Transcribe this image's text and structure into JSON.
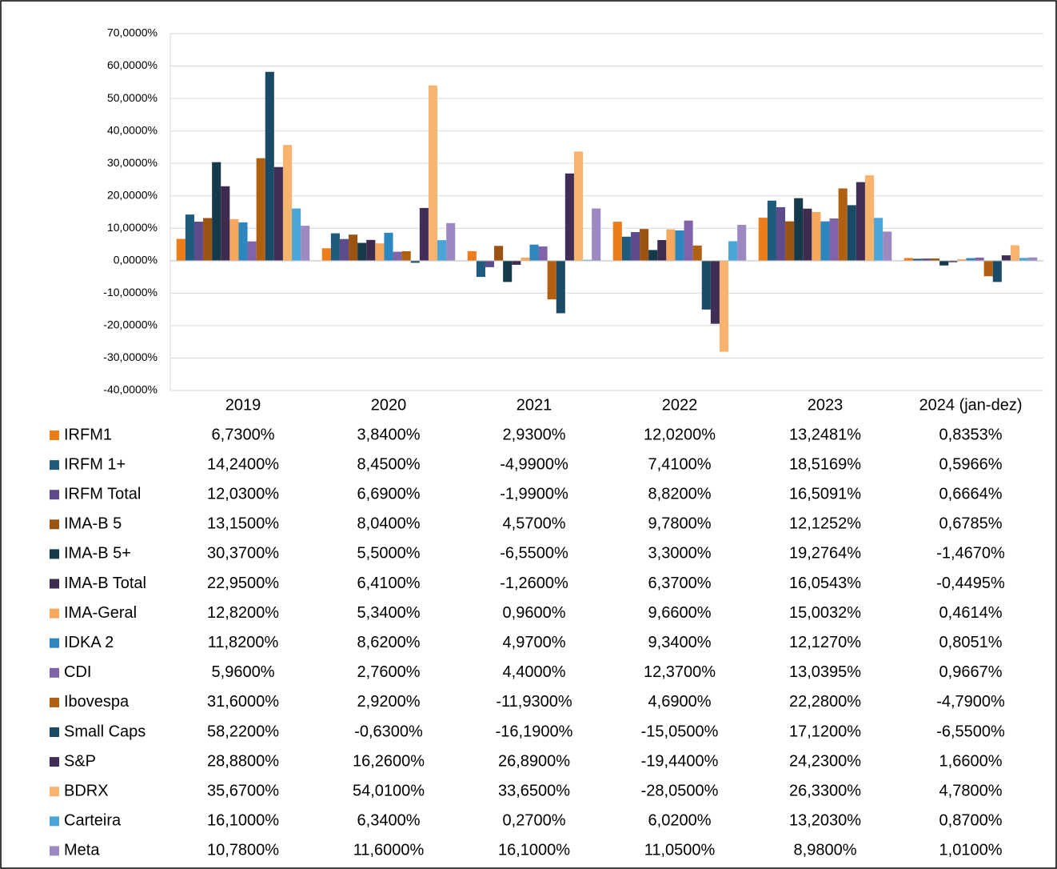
{
  "chart_data": {
    "type": "bar",
    "categories": [
      "2019",
      "2020",
      "2021",
      "2022",
      "2023",
      "2024 (jan-dez)"
    ],
    "ylim": [
      -40,
      70
    ],
    "yticks": [
      {
        "value": -40,
        "label": "-40,0000%"
      },
      {
        "value": -30,
        "label": "-30,0000%"
      },
      {
        "value": -20,
        "label": "-20,0000%"
      },
      {
        "value": -10,
        "label": "-10,0000%"
      },
      {
        "value": 0,
        "label": "0,0000%"
      },
      {
        "value": 10,
        "label": "10,0000%"
      },
      {
        "value": 20,
        "label": "20,0000%"
      },
      {
        "value": 30,
        "label": "30,0000%"
      },
      {
        "value": 40,
        "label": "40,0000%"
      },
      {
        "value": 50,
        "label": "50,0000%"
      },
      {
        "value": 60,
        "label": "60,0000%"
      },
      {
        "value": 70,
        "label": "70,0000%"
      }
    ],
    "grid": true,
    "series": [
      {
        "name": "IRFM1",
        "color": "#ed7d1a",
        "values": [
          6.73,
          3.84,
          2.93,
          12.02,
          13.2481,
          0.8353
        ],
        "value_labels": [
          "6,7300%",
          "3,8400%",
          "2,9300%",
          "12,0200%",
          "13,2481%",
          "0,8353%"
        ]
      },
      {
        "name": "IRFM 1+",
        "color": "#1f5b7c",
        "values": [
          14.24,
          8.45,
          -4.99,
          7.41,
          18.5169,
          0.5966
        ],
        "value_labels": [
          "14,2400%",
          "8,4500%",
          "-4,9900%",
          "7,4100%",
          "18,5169%",
          "0,5966%"
        ]
      },
      {
        "name": "IRFM Total",
        "color": "#5e4b8c",
        "values": [
          12.03,
          6.69,
          -1.99,
          8.82,
          16.5091,
          0.6664
        ],
        "value_labels": [
          "12,0300%",
          "6,6900%",
          "-1,9900%",
          "8,8200%",
          "16,5091%",
          "0,6664%"
        ]
      },
      {
        "name": "IMA-B 5",
        "color": "#9b5311",
        "values": [
          13.15,
          8.04,
          4.57,
          9.78,
          12.1252,
          0.6785
        ],
        "value_labels": [
          "13,1500%",
          "8,0400%",
          "4,5700%",
          "9,7800%",
          "12,1252%",
          "0,6785%"
        ]
      },
      {
        "name": "IMA-B 5+",
        "color": "#143a4c",
        "values": [
          30.37,
          5.5,
          -6.55,
          3.3,
          19.2764,
          -1.467
        ],
        "value_labels": [
          "30,3700%",
          "5,5000%",
          "-6,5500%",
          "3,3000%",
          "19,2764%",
          "-1,4670%"
        ]
      },
      {
        "name": "IMA-B Total",
        "color": "#3e2b50",
        "values": [
          22.95,
          6.41,
          -1.26,
          6.37,
          16.0543,
          -0.4495
        ],
        "value_labels": [
          "22,9500%",
          "6,4100%",
          "-1,2600%",
          "6,3700%",
          "16,0543%",
          "-0,4495%"
        ]
      },
      {
        "name": "IMA-Geral",
        "color": "#f6a85e",
        "values": [
          12.82,
          5.34,
          0.96,
          9.66,
          15.0032,
          0.4614
        ],
        "value_labels": [
          "12,8200%",
          "5,3400%",
          "0,9600%",
          "9,6600%",
          "15,0032%",
          "0,4614%"
        ]
      },
      {
        "name": "IDKA 2",
        "color": "#2e86bf",
        "values": [
          11.82,
          8.62,
          4.97,
          9.34,
          12.127,
          0.8051
        ],
        "value_labels": [
          "11,8200%",
          "8,6200%",
          "4,9700%",
          "9,3400%",
          "12,1270%",
          "0,8051%"
        ]
      },
      {
        "name": "CDI",
        "color": "#8063a9",
        "values": [
          5.96,
          2.76,
          4.4,
          12.37,
          13.0395,
          0.9667
        ],
        "value_labels": [
          "5,9600%",
          "2,7600%",
          "4,4000%",
          "12,3700%",
          "13,0395%",
          "0,9667%"
        ]
      },
      {
        "name": "Ibovespa",
        "color": "#b15f10",
        "values": [
          31.6,
          2.92,
          -11.93,
          4.69,
          22.28,
          -4.79
        ],
        "value_labels": [
          "31,6000%",
          "2,9200%",
          "-11,9300%",
          "4,6900%",
          "22,2800%",
          "-4,7900%"
        ]
      },
      {
        "name": "Small Caps",
        "color": "#1b4a66",
        "values": [
          58.22,
          -0.63,
          -16.19,
          -15.05,
          17.12,
          -6.55
        ],
        "value_labels": [
          "58,2200%",
          "-0,6300%",
          "-16,1900%",
          "-15,0500%",
          "17,1200%",
          "-6,5500%"
        ]
      },
      {
        "name": "S&P",
        "color": "#402e56",
        "values": [
          28.88,
          16.26,
          26.89,
          -19.44,
          24.23,
          1.66
        ],
        "value_labels": [
          "28,8800%",
          "16,2600%",
          "26,8900%",
          "-19,4400%",
          "24,2300%",
          "1,6600%"
        ]
      },
      {
        "name": "BDRX",
        "color": "#f8b46f",
        "values": [
          35.67,
          54.01,
          33.65,
          -28.05,
          26.33,
          4.78
        ],
        "value_labels": [
          "35,6700%",
          "54,0100%",
          "33,6500%",
          "-28,0500%",
          "26,3300%",
          "4,7800%"
        ]
      },
      {
        "name": "Carteira",
        "color": "#4aa5d9",
        "values": [
          16.1,
          6.34,
          0.27,
          6.02,
          13.203,
          0.87
        ],
        "value_labels": [
          "16,1000%",
          "6,3400%",
          "0,2700%",
          "6,0200%",
          "13,2030%",
          "0,8700%"
        ]
      },
      {
        "name": "Meta",
        "color": "#9d89c1",
        "values": [
          10.78,
          11.6,
          16.1,
          11.05,
          8.98,
          1.01
        ],
        "value_labels": [
          "10,7800%",
          "11,6000%",
          "16,1000%",
          "11,0500%",
          "8,9800%",
          "1,0100%"
        ]
      }
    ]
  }
}
